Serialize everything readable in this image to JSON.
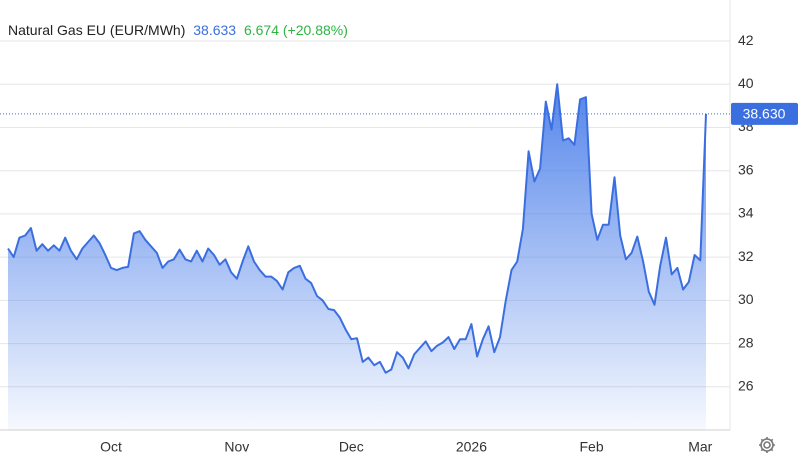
{
  "chart_data": {
    "type": "area",
    "title": "Natural Gas EU (EUR/MWh)",
    "last_value": "38.633",
    "change": "6.674 (+20.88%)",
    "last_marker": {
      "value": 38.63,
      "label": "38.630"
    },
    "categories": [
      null,
      null,
      null,
      null,
      null,
      null,
      null,
      null,
      null,
      null,
      null,
      null,
      null,
      null,
      null,
      null,
      null,
      null,
      "Oct",
      null,
      null,
      null,
      null,
      null,
      null,
      null,
      null,
      null,
      null,
      null,
      null,
      null,
      null,
      null,
      null,
      null,
      null,
      null,
      null,
      null,
      "Nov",
      null,
      null,
      null,
      null,
      null,
      null,
      null,
      null,
      null,
      null,
      null,
      null,
      null,
      null,
      null,
      null,
      null,
      null,
      null,
      "Dec",
      null,
      null,
      null,
      null,
      null,
      null,
      null,
      null,
      null,
      null,
      null,
      null,
      null,
      null,
      null,
      null,
      null,
      null,
      null,
      null,
      "2026",
      null,
      null,
      null,
      null,
      null,
      null,
      null,
      null,
      null,
      null,
      null,
      null,
      null,
      null,
      null,
      null,
      null,
      null,
      null,
      null,
      "Feb",
      null,
      null,
      null,
      null,
      null,
      null,
      null,
      null,
      null,
      null,
      null,
      null,
      null,
      null,
      null,
      null,
      null,
      null,
      "Mar",
      null
    ],
    "series": [
      {
        "name": "Natural Gas EU",
        "color": "#3b6fe0",
        "values": [
          32.4,
          32.0,
          32.9,
          33.0,
          33.35,
          32.3,
          32.6,
          32.3,
          32.55,
          32.3,
          32.9,
          32.3,
          31.9,
          32.4,
          32.7,
          33.0,
          32.65,
          32.1,
          31.5,
          31.4,
          31.5,
          31.55,
          33.1,
          33.2,
          32.8,
          32.5,
          32.2,
          31.5,
          31.8,
          31.9,
          32.35,
          31.9,
          31.8,
          32.3,
          31.8,
          32.4,
          32.1,
          31.65,
          31.9,
          31.3,
          31.0,
          31.8,
          32.5,
          31.8,
          31.4,
          31.1,
          31.1,
          30.9,
          30.5,
          31.3,
          31.5,
          31.6,
          31.0,
          30.8,
          30.2,
          30.0,
          29.6,
          29.55,
          29.2,
          28.65,
          28.2,
          28.25,
          27.15,
          27.35,
          27.0,
          27.15,
          26.65,
          26.8,
          27.6,
          27.35,
          26.85,
          27.5,
          27.8,
          28.1,
          27.65,
          27.9,
          28.05,
          28.3,
          27.75,
          28.2,
          28.2,
          28.9,
          27.4,
          28.2,
          28.8,
          27.6,
          28.3,
          30.0,
          31.4,
          31.8,
          33.3,
          36.9,
          35.5,
          36.1,
          39.2,
          37.9,
          40.0,
          37.4,
          37.5,
          37.2,
          39.3,
          39.4,
          34.0,
          32.8,
          33.5,
          33.5,
          35.7,
          33.0,
          31.9,
          32.2,
          32.95,
          31.8,
          30.4,
          29.8,
          31.6,
          32.9,
          31.2,
          31.5,
          30.5,
          30.85,
          32.1,
          31.85,
          38.63
        ]
      }
    ],
    "ylim": [
      24,
      43.9
    ],
    "yticks": [
      26,
      28,
      30,
      32,
      34,
      36,
      38,
      40,
      42
    ],
    "grid": true
  }
}
